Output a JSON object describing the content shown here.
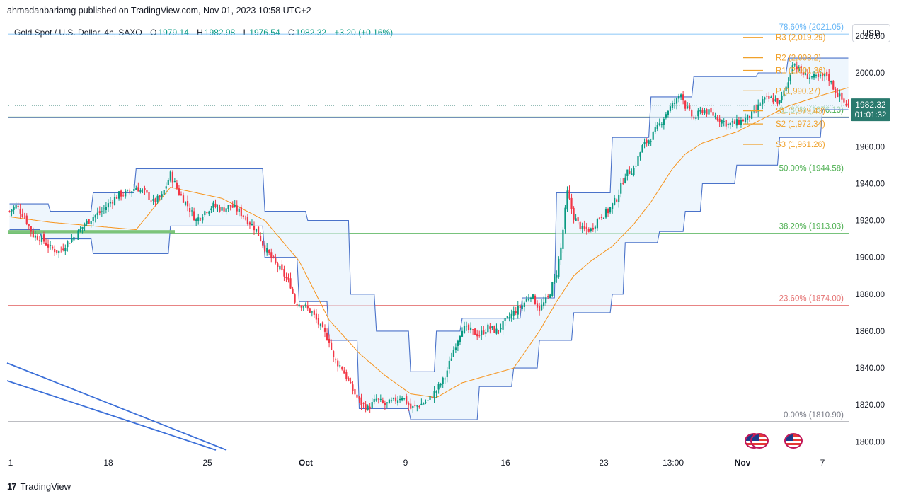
{
  "header": {
    "publisher": "ahmadanbariamg published on TradingView.com, Nov 01, 2023 10:58 UTC+2",
    "symbol": "Gold Spot / U.S. Dollar, 4h, SAXO",
    "o_label": "O",
    "o_value": "1979.14",
    "h_label": "H",
    "h_value": "1982.98",
    "l_label": "L",
    "l_value": "1976.54",
    "c_label": "C",
    "c_value": "1982.32",
    "change": "+3.20 (+0.16%)"
  },
  "currency_button": "USD",
  "footer": {
    "brand": "TradingView"
  },
  "colors": {
    "up": "#089981",
    "down": "#f23645",
    "channel": "#4a72c9",
    "basis": "#f7931a",
    "fib_green": "#4caf50",
    "fib_red": "#e57373",
    "fib_top": "#64b5f6",
    "pivot": "#f0a12b",
    "price_badge": "#2a7a6e"
  },
  "chart_data": {
    "type": "candlestick",
    "y_axis": {
      "ticks": [
        "2020.00",
        "2000.00",
        "1980.00",
        "1960.00",
        "1940.00",
        "1920.00",
        "1900.00",
        "1880.00",
        "1860.00",
        "1840.00",
        "1820.00",
        "1800.00"
      ],
      "range": [
        1794,
        2028
      ]
    },
    "x_axis": {
      "ticks": [
        "1",
        "18",
        "25",
        "Oct",
        "9",
        "16",
        "23",
        "13:00",
        "Nov",
        "7"
      ]
    },
    "last_price": "1982.32",
    "countdown": "01:01:32",
    "fib_levels": [
      {
        "label": "78.60% (2021.05)",
        "value": 2021.05,
        "color": "#64b5f6"
      },
      {
        "label": "61.80% (1976.13)",
        "value": 1976.13,
        "color": "#4caf50"
      },
      {
        "label": "50.00% (1944.58)",
        "value": 1944.58,
        "color": "#4caf50"
      },
      {
        "label": "38.20% (1913.03)",
        "value": 1913.03,
        "color": "#4caf50"
      },
      {
        "label": "23.60% (1874.00)",
        "value": 1874.0,
        "color": "#e57373"
      },
      {
        "label": "0.00% (1810.90)",
        "value": 1810.9,
        "color": "#787b86"
      }
    ],
    "pivots": [
      {
        "label": "R3 (2,019.29)",
        "value": 2019.29
      },
      {
        "label": "R2 (2,008.2)",
        "value": 2008.2
      },
      {
        "label": "R1 (2,001.36)",
        "value": 2001.36
      },
      {
        "label": "P (1,990.27)",
        "value": 1990.27
      },
      {
        "label": "S1 (1,979.43)",
        "value": 1979.43
      },
      {
        "label": "S2 (1,972.34)",
        "value": 1972.34
      },
      {
        "label": "S3 (1,961.26)",
        "value": 1961.26
      }
    ],
    "close_path": [
      [
        1,
        1925
      ],
      [
        4,
        1928
      ],
      [
        8,
        1922
      ],
      [
        12,
        1912
      ],
      [
        16,
        1910
      ],
      [
        20,
        1905
      ],
      [
        24,
        1903
      ],
      [
        28,
        1908
      ],
      [
        32,
        1912
      ],
      [
        36,
        1918
      ],
      [
        40,
        1922
      ],
      [
        44,
        1925
      ],
      [
        48,
        1930
      ],
      [
        52,
        1934
      ],
      [
        56,
        1935
      ],
      [
        60,
        1938
      ],
      [
        64,
        1935
      ],
      [
        68,
        1930
      ],
      [
        72,
        1933
      ],
      [
        76,
        1945
      ],
      [
        80,
        1935
      ],
      [
        84,
        1928
      ],
      [
        88,
        1920
      ],
      [
        92,
        1925
      ],
      [
        96,
        1928
      ],
      [
        100,
        1926
      ],
      [
        104,
        1928
      ],
      [
        108,
        1925
      ],
      [
        112,
        1920
      ],
      [
        116,
        1915
      ],
      [
        120,
        1905
      ],
      [
        124,
        1898
      ],
      [
        128,
        1892
      ],
      [
        132,
        1885
      ],
      [
        134,
        1876
      ],
      [
        138,
        1874
      ],
      [
        142,
        1870
      ],
      [
        146,
        1862
      ],
      [
        150,
        1855
      ],
      [
        152,
        1845
      ],
      [
        156,
        1840
      ],
      [
        160,
        1830
      ],
      [
        164,
        1822
      ],
      [
        168,
        1818
      ],
      [
        172,
        1823
      ],
      [
        176,
        1820
      ],
      [
        180,
        1822
      ],
      [
        184,
        1825
      ],
      [
        188,
        1818
      ],
      [
        192,
        1820
      ],
      [
        196,
        1822
      ],
      [
        200,
        1828
      ],
      [
        204,
        1835
      ],
      [
        208,
        1850
      ],
      [
        212,
        1862
      ],
      [
        216,
        1860
      ],
      [
        220,
        1858
      ],
      [
        224,
        1862
      ],
      [
        228,
        1860
      ],
      [
        232,
        1865
      ],
      [
        236,
        1870
      ],
      [
        240,
        1874
      ],
      [
        244,
        1880
      ],
      [
        248,
        1872
      ],
      [
        252,
        1878
      ],
      [
        256,
        1892
      ],
      [
        258,
        1905
      ],
      [
        261,
        1935
      ],
      [
        264,
        1922
      ],
      [
        268,
        1915
      ],
      [
        272,
        1915
      ],
      [
        276,
        1922
      ],
      [
        280,
        1925
      ],
      [
        284,
        1932
      ],
      [
        288,
        1945
      ],
      [
        292,
        1948
      ],
      [
        296,
        1960
      ],
      [
        300,
        1965
      ],
      [
        304,
        1972
      ],
      [
        308,
        1980
      ],
      [
        312,
        1985
      ],
      [
        314,
        1990
      ],
      [
        316,
        1982
      ],
      [
        320,
        1975
      ],
      [
        324,
        1980
      ],
      [
        328,
        1978
      ],
      [
        332,
        1975
      ],
      [
        336,
        1972
      ],
      [
        340,
        1973
      ],
      [
        344,
        1975
      ],
      [
        348,
        1978
      ],
      [
        352,
        1985
      ],
      [
        356,
        1986
      ],
      [
        360,
        1984
      ],
      [
        364,
        1995
      ],
      [
        366,
        2006
      ],
      [
        370,
        2000
      ],
      [
        374,
        1998
      ],
      [
        378,
        1997
      ],
      [
        382,
        1999
      ],
      [
        386,
        1990
      ],
      [
        390,
        1984
      ],
      [
        392,
        1982
      ]
    ],
    "channel_upper_path": [
      [
        1,
        1929
      ],
      [
        20,
        1929
      ],
      [
        20,
        1925
      ],
      [
        40,
        1925
      ],
      [
        40,
        1935
      ],
      [
        60,
        1935
      ],
      [
        60,
        1948
      ],
      [
        120,
        1948
      ],
      [
        120,
        1925
      ],
      [
        140,
        1925
      ],
      [
        140,
        1920
      ],
      [
        160,
        1920
      ],
      [
        160,
        1880
      ],
      [
        172,
        1880
      ],
      [
        172,
        1860
      ],
      [
        188,
        1860
      ],
      [
        188,
        1838
      ],
      [
        200,
        1838
      ],
      [
        200,
        1860
      ],
      [
        212,
        1860
      ],
      [
        212,
        1867
      ],
      [
        240,
        1867
      ],
      [
        240,
        1878
      ],
      [
        256,
        1878
      ],
      [
        256,
        1935
      ],
      [
        282,
        1935
      ],
      [
        282,
        1965
      ],
      [
        300,
        1965
      ],
      [
        300,
        1987
      ],
      [
        320,
        1987
      ],
      [
        320,
        1998
      ],
      [
        350,
        1998
      ],
      [
        350,
        2000
      ],
      [
        364,
        2000
      ],
      [
        364,
        2008
      ],
      [
        392,
        2008
      ]
    ],
    "channel_lower_path": [
      [
        1,
        1915
      ],
      [
        16,
        1915
      ],
      [
        16,
        1910
      ],
      [
        40,
        1910
      ],
      [
        40,
        1902
      ],
      [
        76,
        1902
      ],
      [
        76,
        1917
      ],
      [
        120,
        1917
      ],
      [
        120,
        1900
      ],
      [
        136,
        1900
      ],
      [
        136,
        1876
      ],
      [
        150,
        1876
      ],
      [
        150,
        1855
      ],
      [
        164,
        1855
      ],
      [
        164,
        1818
      ],
      [
        188,
        1818
      ],
      [
        188,
        1812
      ],
      [
        220,
        1812
      ],
      [
        220,
        1830
      ],
      [
        236,
        1830
      ],
      [
        236,
        1840
      ],
      [
        248,
        1840
      ],
      [
        248,
        1855
      ],
      [
        264,
        1855
      ],
      [
        264,
        1870
      ],
      [
        282,
        1870
      ],
      [
        282,
        1880
      ],
      [
        288,
        1880
      ],
      [
        288,
        1908
      ],
      [
        304,
        1908
      ],
      [
        304,
        1914
      ],
      [
        316,
        1914
      ],
      [
        316,
        1925
      ],
      [
        324,
        1925
      ],
      [
        324,
        1940
      ],
      [
        340,
        1940
      ],
      [
        340,
        1950
      ],
      [
        360,
        1950
      ],
      [
        360,
        1965
      ],
      [
        380,
        1965
      ],
      [
        380,
        1980
      ],
      [
        392,
        1980
      ]
    ],
    "basis_path": [
      [
        1,
        1922
      ],
      [
        20,
        1919
      ],
      [
        40,
        1917
      ],
      [
        60,
        1915
      ],
      [
        76,
        1938
      ],
      [
        100,
        1932
      ],
      [
        120,
        1920
      ],
      [
        136,
        1898
      ],
      [
        150,
        1866
      ],
      [
        164,
        1848
      ],
      [
        176,
        1836
      ],
      [
        188,
        1826
      ],
      [
        200,
        1824
      ],
      [
        212,
        1832
      ],
      [
        224,
        1836
      ],
      [
        236,
        1840
      ],
      [
        248,
        1860
      ],
      [
        256,
        1876
      ],
      [
        264,
        1890
      ],
      [
        272,
        1898
      ],
      [
        282,
        1906
      ],
      [
        292,
        1918
      ],
      [
        300,
        1930
      ],
      [
        310,
        1948
      ],
      [
        316,
        1956
      ],
      [
        324,
        1962
      ],
      [
        340,
        1968
      ],
      [
        352,
        1975
      ],
      [
        364,
        1982
      ],
      [
        380,
        1988
      ],
      [
        392,
        1992
      ]
    ]
  }
}
